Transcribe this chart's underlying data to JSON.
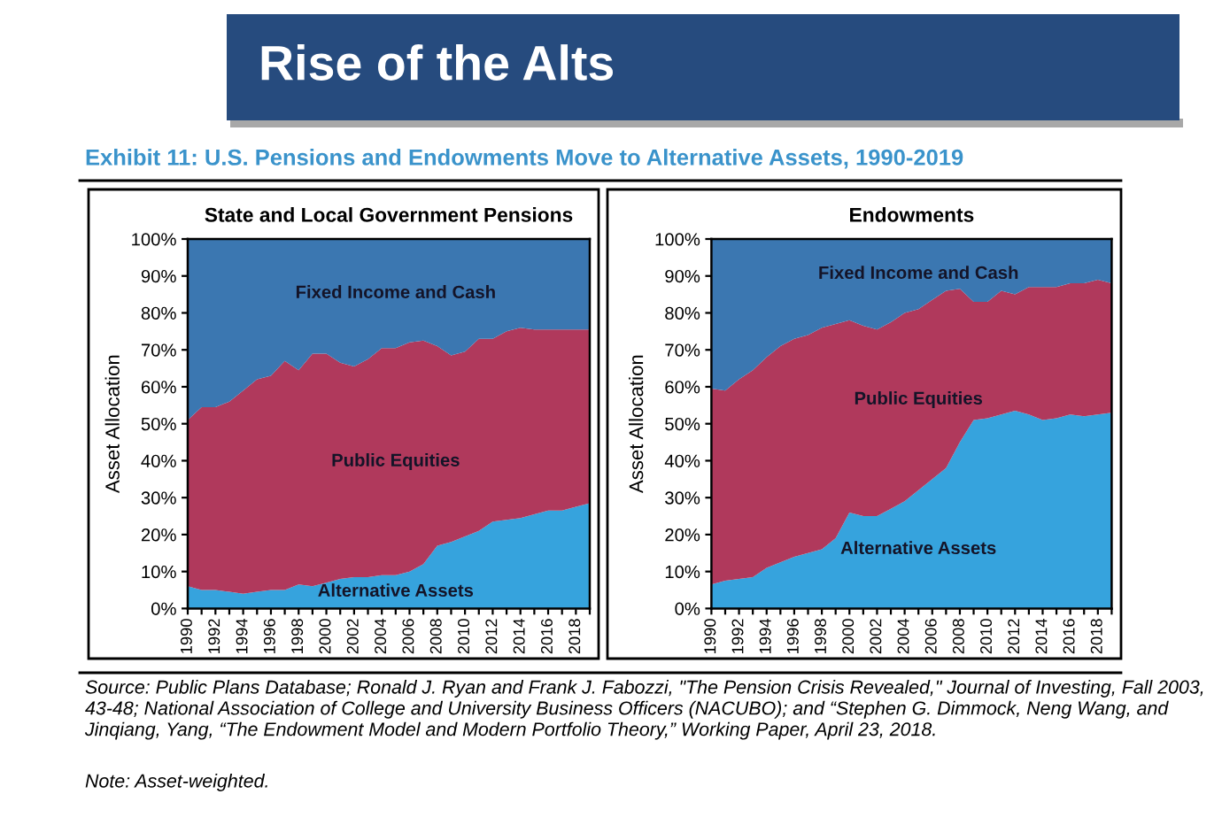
{
  "chart_data": [
    {
      "type": "other",
      "title": "Rise of the Alts",
      "subtitle": "Exhibit 11: U.S. Pensions and Endowments Move to Alternative Assets, 1990-2019",
      "annotations": [
        "Source: Public Plans Database; Ronald J. Ryan and Frank J. Fabozzi, \"The Pension Crisis Revealed,\" Journal of Investing, Fall 2003, 43-48; National Association of College and University Business Officers (NACUBO); and “Stephen G. Dimmock, Neng Wang, and Jinqiang, Yang, “The Endowment Model and Modern Portfolio Theory,” Working Paper, April 23, 2018.",
        "Note: Asset-weighted."
      ]
    },
    {
      "type": "area",
      "stacked": true,
      "title": "State and Local Government Pensions",
      "ylabel": "Asset Allocation",
      "x": [
        1990,
        1991,
        1992,
        1993,
        1994,
        1995,
        1996,
        1997,
        1998,
        1999,
        2000,
        2001,
        2002,
        2003,
        2004,
        2005,
        2006,
        2007,
        2008,
        2009,
        2010,
        2011,
        2012,
        2013,
        2014,
        2015,
        2016,
        2017,
        2018,
        2019
      ],
      "xlim": [
        1990,
        2019
      ],
      "xticks": [
        {
          "value": 1990,
          "label": "1990"
        },
        {
          "value": 1991,
          "label": null
        },
        {
          "value": 1992,
          "label": "1992"
        },
        {
          "value": 1993,
          "label": null
        },
        {
          "value": 1994,
          "label": "1994"
        },
        {
          "value": 1995,
          "label": null
        },
        {
          "value": 1996,
          "label": "1996"
        },
        {
          "value": 1997,
          "label": null
        },
        {
          "value": 1998,
          "label": "1998"
        },
        {
          "value": 1999,
          "label": null
        },
        {
          "value": 2000,
          "label": "2000"
        },
        {
          "value": 2001,
          "label": null
        },
        {
          "value": 2002,
          "label": "2002"
        },
        {
          "value": 2003,
          "label": null
        },
        {
          "value": 2004,
          "label": "2004"
        },
        {
          "value": 2005,
          "label": null
        },
        {
          "value": 2006,
          "label": "2006"
        },
        {
          "value": 2007,
          "label": null
        },
        {
          "value": 2008,
          "label": "2008"
        },
        {
          "value": 2009,
          "label": null
        },
        {
          "value": 2010,
          "label": "2010"
        },
        {
          "value": 2011,
          "label": null
        },
        {
          "value": 2012,
          "label": "2012"
        },
        {
          "value": 2013,
          "label": null
        },
        {
          "value": 2014,
          "label": "2014"
        },
        {
          "value": 2015,
          "label": null
        },
        {
          "value": 2016,
          "label": "2016"
        },
        {
          "value": 2017,
          "label": null
        },
        {
          "value": 2018,
          "label": "2018"
        },
        {
          "value": 2019,
          "label": null
        }
      ],
      "ylim": [
        0,
        100
      ],
      "yticks": [
        {
          "value": 0,
          "label": "0%"
        },
        {
          "value": 10,
          "label": "10%"
        },
        {
          "value": 20,
          "label": "20%"
        },
        {
          "value": 30,
          "label": "30%"
        },
        {
          "value": 40,
          "label": "40%"
        },
        {
          "value": 50,
          "label": "50%"
        },
        {
          "value": 60,
          "label": "60%"
        },
        {
          "value": 70,
          "label": "70%"
        },
        {
          "value": 80,
          "label": "80%"
        },
        {
          "value": 90,
          "label": "90%"
        },
        {
          "value": 100,
          "label": "100%"
        }
      ],
      "series": [
        {
          "name": "Alternative Assets",
          "color": "#36a3dd",
          "values": [
            6,
            5,
            5,
            4.5,
            4,
            4.5,
            5,
            5,
            6.5,
            6,
            7,
            8,
            8.5,
            8.5,
            9,
            9,
            10,
            12,
            17,
            18,
            19.5,
            21,
            23.5,
            24,
            24.5,
            25.5,
            26.5,
            26.5,
            27.5,
            28.5
          ]
        },
        {
          "name": "Public Equities",
          "color": "#b0395c",
          "values": [
            45,
            49.5,
            49.5,
            51.5,
            55,
            57.5,
            58,
            62,
            58,
            63,
            62,
            58.5,
            57,
            59,
            61.5,
            61.5,
            62,
            60.5,
            54,
            50.5,
            50,
            52,
            49.5,
            51,
            51.5,
            50,
            49,
            49,
            48,
            47
          ]
        },
        {
          "name": "Fixed Income and Cash",
          "color": "#3b77b1",
          "values": [
            49,
            45.5,
            45.5,
            44,
            41,
            38,
            37,
            33,
            35.5,
            31,
            31,
            33.5,
            34.5,
            32.5,
            29.5,
            29.5,
            28,
            27.5,
            29,
            31.5,
            30.5,
            27,
            27,
            25,
            24,
            24.5,
            24.5,
            24.5,
            24.5,
            24.5
          ]
        }
      ]
    },
    {
      "type": "area",
      "stacked": true,
      "title": "Endowments",
      "ylabel": "Asset Allocation",
      "x": [
        1990,
        1991,
        1992,
        1993,
        1994,
        1995,
        1996,
        1997,
        1998,
        1999,
        2000,
        2001,
        2002,
        2003,
        2004,
        2005,
        2006,
        2007,
        2008,
        2009,
        2010,
        2011,
        2012,
        2013,
        2014,
        2015,
        2016,
        2017,
        2018,
        2019
      ],
      "xlim": [
        1990,
        2019
      ],
      "xticks": [
        {
          "value": 1990,
          "label": "1990"
        },
        {
          "value": 1991,
          "label": null
        },
        {
          "value": 1992,
          "label": "1992"
        },
        {
          "value": 1993,
          "label": null
        },
        {
          "value": 1994,
          "label": "1994"
        },
        {
          "value": 1995,
          "label": null
        },
        {
          "value": 1996,
          "label": "1996"
        },
        {
          "value": 1997,
          "label": null
        },
        {
          "value": 1998,
          "label": "1998"
        },
        {
          "value": 1999,
          "label": null
        },
        {
          "value": 2000,
          "label": "2000"
        },
        {
          "value": 2001,
          "label": null
        },
        {
          "value": 2002,
          "label": "2002"
        },
        {
          "value": 2003,
          "label": null
        },
        {
          "value": 2004,
          "label": "2004"
        },
        {
          "value": 2005,
          "label": null
        },
        {
          "value": 2006,
          "label": "2006"
        },
        {
          "value": 2007,
          "label": null
        },
        {
          "value": 2008,
          "label": "2008"
        },
        {
          "value": 2009,
          "label": null
        },
        {
          "value": 2010,
          "label": "2010"
        },
        {
          "value": 2011,
          "label": null
        },
        {
          "value": 2012,
          "label": "2012"
        },
        {
          "value": 2013,
          "label": null
        },
        {
          "value": 2014,
          "label": "2014"
        },
        {
          "value": 2015,
          "label": null
        },
        {
          "value": 2016,
          "label": "2016"
        },
        {
          "value": 2017,
          "label": null
        },
        {
          "value": 2018,
          "label": "2018"
        },
        {
          "value": 2019,
          "label": null
        }
      ],
      "ylim": [
        0,
        100
      ],
      "yticks": [
        {
          "value": 0,
          "label": "0%"
        },
        {
          "value": 10,
          "label": "10%"
        },
        {
          "value": 20,
          "label": "20%"
        },
        {
          "value": 30,
          "label": "30%"
        },
        {
          "value": 40,
          "label": "40%"
        },
        {
          "value": 50,
          "label": "50%"
        },
        {
          "value": 60,
          "label": "60%"
        },
        {
          "value": 70,
          "label": "70%"
        },
        {
          "value": 80,
          "label": "80%"
        },
        {
          "value": 90,
          "label": "90%"
        },
        {
          "value": 100,
          "label": "100%"
        }
      ],
      "series": [
        {
          "name": "Alternative Assets",
          "color": "#36a3dd",
          "values": [
            6.5,
            7.5,
            8,
            8.5,
            11,
            12.5,
            14,
            15,
            16,
            19,
            26,
            25,
            25,
            27,
            29,
            32,
            35,
            38,
            45,
            51,
            51.5,
            52.5,
            53.5,
            52.5,
            51,
            51.5,
            52.5,
            52,
            52.5,
            53
          ]
        },
        {
          "name": "Public Equities",
          "color": "#b0395c",
          "values": [
            53,
            51.5,
            54,
            56,
            57,
            58.5,
            59,
            59,
            60,
            58,
            52,
            51.5,
            50.5,
            50.5,
            51,
            49,
            48.5,
            48,
            41.5,
            32,
            31.5,
            33.5,
            31.5,
            34.5,
            36,
            35.5,
            35.5,
            36,
            36.5,
            35
          ]
        },
        {
          "name": "Fixed Income and Cash",
          "color": "#3b77b1",
          "values": [
            40.5,
            41,
            38,
            35.5,
            32,
            29,
            27,
            26,
            24,
            23,
            22,
            23.5,
            24.5,
            22.5,
            20,
            19,
            16.5,
            14,
            13.5,
            17,
            17,
            14,
            15,
            13,
            13,
            13,
            12,
            12,
            11,
            12
          ]
        }
      ]
    }
  ]
}
